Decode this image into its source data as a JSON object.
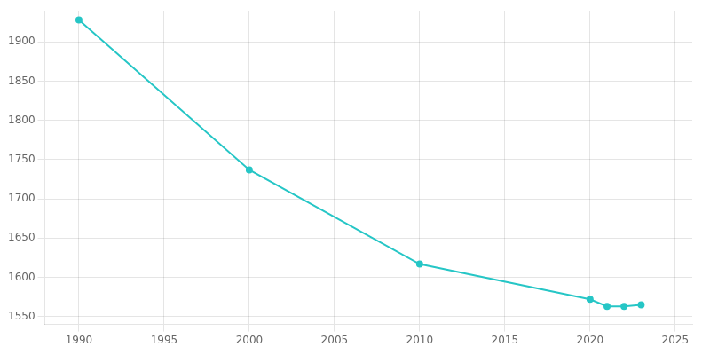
{
  "chart_data": {
    "type": "line",
    "x": [
      1990,
      2000,
      2010,
      2020,
      2021,
      2022,
      2023
    ],
    "values": [
      1928,
      1737,
      1617,
      1572,
      1563,
      1563,
      1565
    ],
    "color": "#26c6c6",
    "marker": "circle",
    "xlim": [
      1988,
      2026
    ],
    "ylim": [
      1540,
      1940
    ],
    "xticks": [
      1990,
      1995,
      2000,
      2005,
      2010,
      2015,
      2020,
      2025
    ],
    "yticks": [
      1550,
      1600,
      1650,
      1700,
      1750,
      1800,
      1850,
      1900
    ],
    "grid": true
  }
}
